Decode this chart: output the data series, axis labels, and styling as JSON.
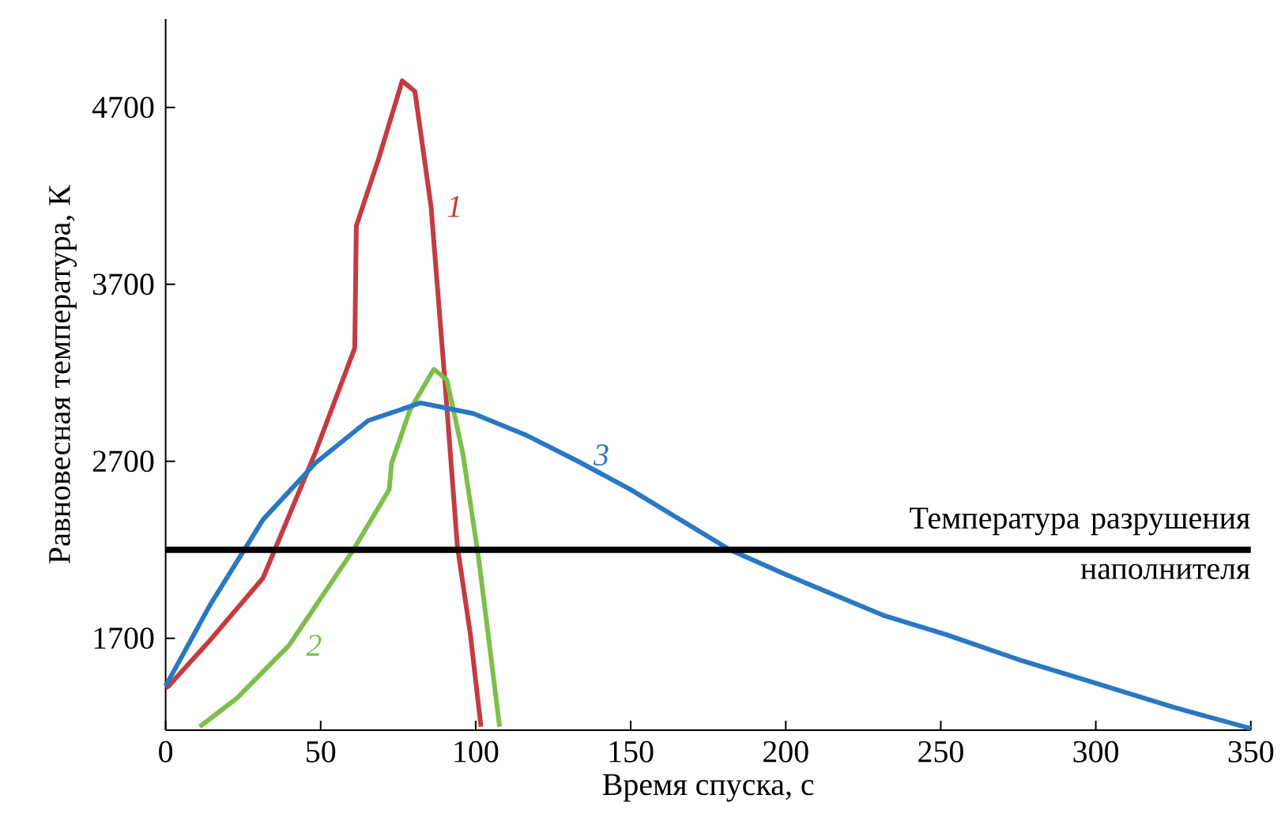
{
  "chart_data": {
    "type": "line",
    "xlabel": "Время спуска, с",
    "ylabel": "Равновесная температура, К",
    "xlim": [
      0,
      350
    ],
    "ylim": [
      1180,
      5200
    ],
    "xticks": [
      0,
      50,
      100,
      150,
      200,
      250,
      300,
      350
    ],
    "yticks": [
      1700,
      2700,
      3700,
      4700
    ],
    "grid": false,
    "legend": false,
    "marker": "none",
    "line_style": "solid",
    "series": [
      {
        "name": "1",
        "color": "#c43c3f",
        "x": [
          0,
          1,
          14.4,
          31.4,
          48.3,
          61,
          61.5,
          68.7,
          76.3,
          80.4,
          85.6,
          89.9,
          94.1,
          98.3,
          101.7
        ],
        "values": [
          1420,
          1430,
          1690,
          2040,
          2750,
          3340,
          4030,
          4410,
          4850,
          4790,
          4140,
          3190,
          2220,
          1720,
          1200
        ]
      },
      {
        "name": "2",
        "color": "#7dbf4a",
        "x": [
          11,
          22.9,
          39.8,
          60.2,
          72.1,
          72.9,
          78.8,
          86.5,
          90.7,
          95.8,
          100.9,
          105.1,
          107.7
        ],
        "values": [
          1200,
          1360,
          1660,
          2190,
          2540,
          2690,
          2990,
          3220,
          3160,
          2750,
          2160,
          1570,
          1200
        ]
      },
      {
        "name": "3",
        "color": "#2a78c2",
        "x": [
          0,
          14.4,
          31.4,
          48.3,
          65.3,
          82.2,
          99.2,
          116,
          133,
          150,
          182,
          200,
          231.4,
          251.8,
          275,
          299.2,
          325,
          350
        ],
        "values": [
          1430,
          1890,
          2370,
          2690,
          2930,
          3030,
          2970,
          2850,
          2700,
          2540,
          2200,
          2060,
          1830,
          1720,
          1580,
          1450,
          1310,
          1190
        ]
      }
    ],
    "ref_lines": [
      {
        "axis": "y",
        "value": 2200,
        "label": "Температура разрушения наполнителя",
        "color": "#000000"
      }
    ]
  }
}
